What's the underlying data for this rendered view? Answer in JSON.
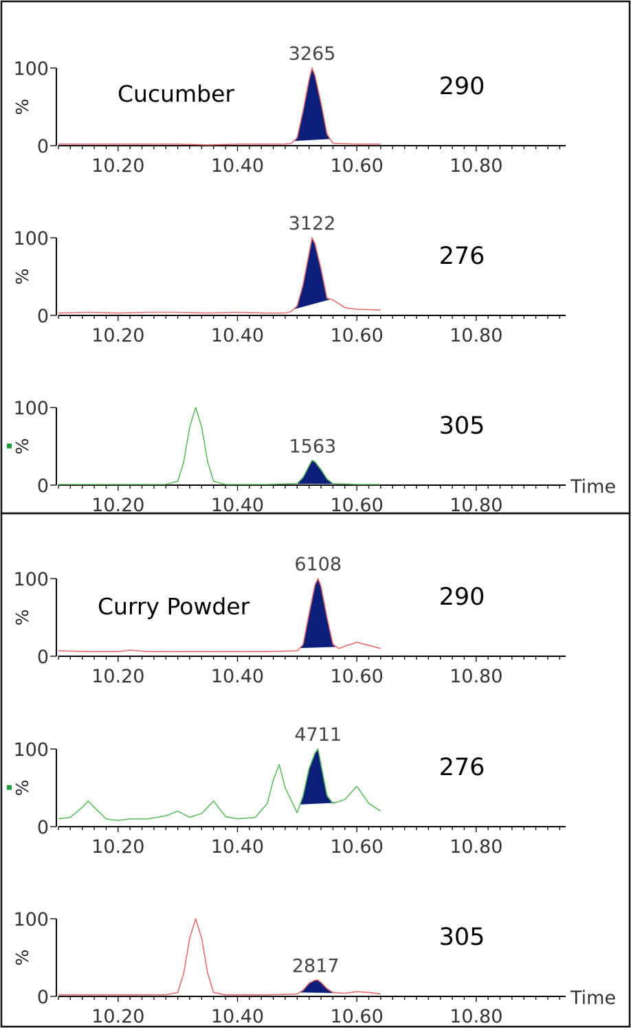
{
  "chart_data": [
    {
      "type": "line",
      "sample": "Cucumber",
      "mass": "290",
      "line_color": "#e56b6b",
      "xlim": [
        10.1,
        10.95
      ],
      "ylim": [
        0,
        100
      ],
      "xticks": [
        "10.20",
        "10.40",
        "10.60",
        "10.80"
      ],
      "yticks": [
        "100",
        "0"
      ],
      "ylabel": "%",
      "xlabel": "",
      "peak_label": "3265",
      "peak_area": [
        10.495,
        10.555
      ],
      "trace": {
        "x": [
          10.1,
          10.2,
          10.3,
          10.35,
          10.4,
          10.45,
          10.48,
          10.49,
          10.5,
          10.51,
          10.52,
          10.525,
          10.53,
          10.54,
          10.55,
          10.56,
          10.6,
          10.64
        ],
        "y": [
          2,
          2,
          2,
          1,
          2,
          2,
          2,
          3,
          10,
          45,
          85,
          100,
          90,
          55,
          15,
          3,
          2,
          2
        ]
      }
    },
    {
      "type": "line",
      "sample": "",
      "mass": "276",
      "line_color": "#e56b6b",
      "xlim": [
        10.1,
        10.95
      ],
      "ylim": [
        0,
        100
      ],
      "xticks": [
        "10.20",
        "10.40",
        "10.60",
        "10.80"
      ],
      "yticks": [
        "100",
        "0"
      ],
      "ylabel": "%",
      "xlabel": "",
      "peak_label": "3122",
      "peak_area": [
        10.495,
        10.555
      ],
      "trace": {
        "x": [
          10.1,
          10.15,
          10.2,
          10.25,
          10.3,
          10.35,
          10.4,
          10.45,
          10.48,
          10.49,
          10.5,
          10.51,
          10.52,
          10.525,
          10.53,
          10.54,
          10.55,
          10.56,
          10.58,
          10.6,
          10.64
        ],
        "y": [
          3,
          4,
          3,
          4,
          4,
          3,
          4,
          3,
          3,
          5,
          12,
          40,
          80,
          100,
          92,
          60,
          22,
          20,
          10,
          8,
          7
        ]
      }
    },
    {
      "type": "line",
      "sample": "",
      "mass": "305",
      "line_color": "#5dbb5d",
      "xlim": [
        10.1,
        10.95
      ],
      "ylim": [
        0,
        100
      ],
      "xticks": [
        "10.20",
        "10.40",
        "10.60",
        "10.80"
      ],
      "yticks": [
        "100",
        "0"
      ],
      "ylabel": "%",
      "xlabel": "Time",
      "peak_label": "1563",
      "peak_area": [
        10.5,
        10.56
      ],
      "trace": {
        "x": [
          10.1,
          10.2,
          10.28,
          10.3,
          10.31,
          10.32,
          10.33,
          10.34,
          10.35,
          10.36,
          10.38,
          10.45,
          10.5,
          10.51,
          10.52,
          10.525,
          10.53,
          10.54,
          10.55,
          10.56,
          10.6,
          10.64
        ],
        "y": [
          1,
          1,
          1,
          5,
          30,
          75,
          100,
          75,
          30,
          5,
          1,
          1,
          2,
          10,
          25,
          32,
          30,
          20,
          8,
          2,
          1,
          1
        ]
      }
    },
    {
      "type": "line",
      "sample": "Curry Powder",
      "mass": "290",
      "line_color": "#e56b6b",
      "xlim": [
        10.1,
        10.95
      ],
      "ylim": [
        0,
        100
      ],
      "xticks": [
        "10.20",
        "10.40",
        "10.60",
        "10.80"
      ],
      "yticks": [
        "100",
        "0"
      ],
      "ylabel": "%",
      "xlabel": "",
      "peak_label": "6108",
      "peak_area": [
        10.505,
        10.565
      ],
      "trace": {
        "x": [
          10.1,
          10.15,
          10.2,
          10.22,
          10.25,
          10.3,
          10.35,
          10.4,
          10.45,
          10.5,
          10.51,
          10.52,
          10.53,
          10.535,
          10.54,
          10.55,
          10.56,
          10.57,
          10.58,
          10.6,
          10.62,
          10.64
        ],
        "y": [
          7,
          6,
          6,
          8,
          6,
          6,
          6,
          6,
          6,
          7,
          15,
          55,
          92,
          100,
          90,
          50,
          15,
          10,
          13,
          18,
          14,
          10
        ]
      }
    },
    {
      "type": "line",
      "sample": "",
      "mass": "276",
      "line_color": "#5dbb5d",
      "xlim": [
        10.1,
        10.95
      ],
      "ylim": [
        0,
        100
      ],
      "xticks": [
        "10.20",
        "10.40",
        "10.60",
        "10.80"
      ],
      "yticks": [
        "100",
        "0"
      ],
      "ylabel": "%",
      "xlabel": "",
      "peak_label": "4711",
      "peak_area": [
        10.505,
        10.565
      ],
      "trace": {
        "x": [
          10.1,
          10.12,
          10.14,
          10.15,
          10.16,
          10.18,
          10.2,
          10.22,
          10.25,
          10.28,
          10.3,
          10.32,
          10.34,
          10.36,
          10.38,
          10.4,
          10.43,
          10.45,
          10.46,
          10.47,
          10.48,
          10.5,
          10.51,
          10.52,
          10.53,
          10.535,
          10.54,
          10.55,
          10.56,
          10.58,
          10.6,
          10.62,
          10.64
        ],
        "y": [
          10,
          12,
          25,
          33,
          25,
          10,
          8,
          10,
          10,
          14,
          20,
          12,
          17,
          33,
          13,
          10,
          12,
          30,
          60,
          80,
          50,
          18,
          40,
          75,
          95,
          100,
          80,
          40,
          30,
          35,
          52,
          30,
          20
        ]
      }
    },
    {
      "type": "line",
      "sample": "",
      "mass": "305",
      "line_color": "#e56b6b",
      "xlim": [
        10.1,
        10.95
      ],
      "ylim": [
        0,
        100
      ],
      "xticks": [
        "10.20",
        "10.40",
        "10.60",
        "10.80"
      ],
      "yticks": [
        "100",
        "0"
      ],
      "ylabel": "%",
      "xlabel": "Time",
      "peak_label": "2817",
      "peak_area": [
        10.505,
        10.565
      ],
      "trace": {
        "x": [
          10.1,
          10.2,
          10.28,
          10.3,
          10.31,
          10.32,
          10.33,
          10.34,
          10.35,
          10.36,
          10.38,
          10.45,
          10.5,
          10.51,
          10.52,
          10.53,
          10.535,
          10.54,
          10.55,
          10.56,
          10.58,
          10.6,
          10.62,
          10.64
        ],
        "y": [
          2,
          2,
          2,
          5,
          30,
          75,
          100,
          75,
          30,
          5,
          2,
          2,
          3,
          8,
          17,
          21,
          21,
          18,
          10,
          5,
          4,
          6,
          5,
          3
        ]
      }
    }
  ]
}
